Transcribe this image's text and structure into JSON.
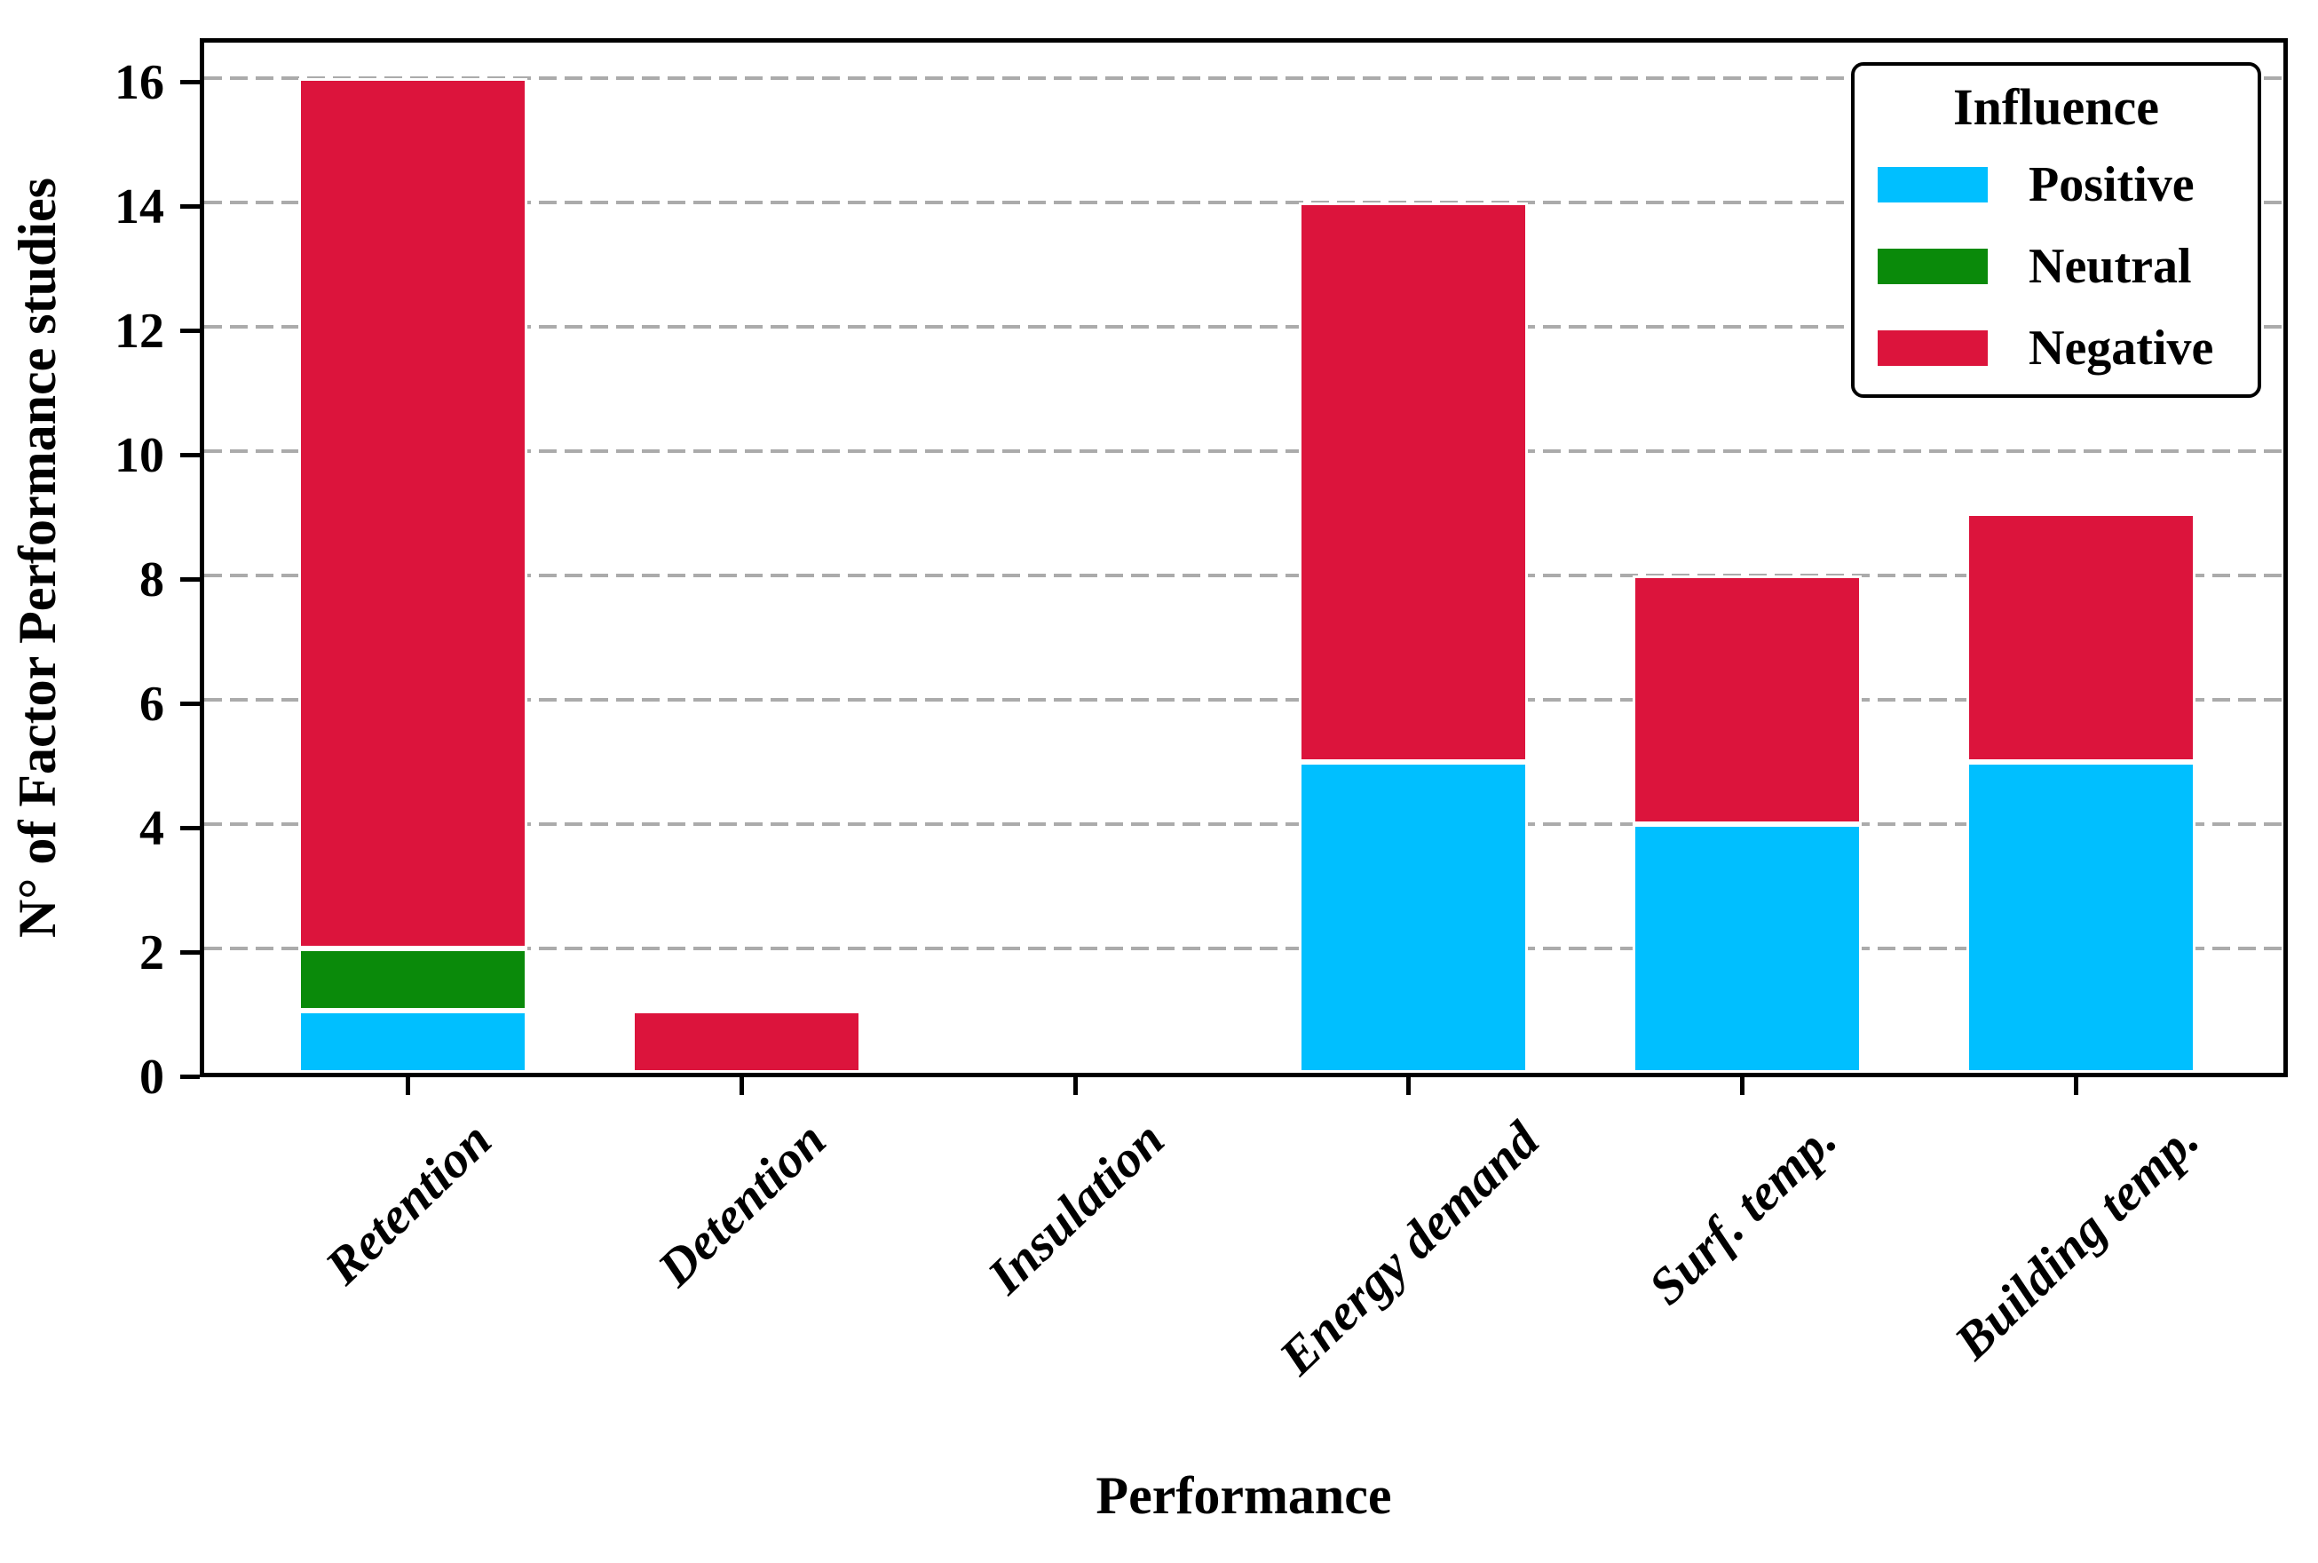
{
  "chart_data": {
    "type": "bar",
    "stacked": true,
    "orientation": "vertical",
    "title": "",
    "xlabel": "Performance",
    "ylabel": "N° of Factor Performance studies",
    "categories": [
      "Retention",
      "Detention",
      "Insulation",
      "Energy demand",
      "Surf. temp.",
      "Building temp."
    ],
    "series": [
      {
        "name": "Positive",
        "color": "#00BFFF",
        "values": [
          1,
          0,
          0,
          5,
          4,
          5
        ]
      },
      {
        "name": "Neutral",
        "color": "#0A8A0A",
        "values": [
          1,
          0,
          0,
          0,
          0,
          0
        ]
      },
      {
        "name": "Negative",
        "color": "#DC143C",
        "values": [
          14,
          1,
          0,
          9,
          4,
          4
        ]
      }
    ],
    "stack_totals": [
      16,
      1,
      0,
      14,
      8,
      9
    ],
    "ylim": [
      0,
      16.7
    ],
    "yticks": [
      0,
      2,
      4,
      6,
      8,
      10,
      12,
      14,
      16
    ],
    "xtick_label_rotation_deg": 44,
    "grid": {
      "axis": "y",
      "style": "dashed",
      "color": "#ababab"
    },
    "bar_edge_color": "#ffffff",
    "legend": {
      "title": "Influence",
      "position": "upper right",
      "entries": [
        "Positive",
        "Neutral",
        "Negative"
      ]
    }
  }
}
